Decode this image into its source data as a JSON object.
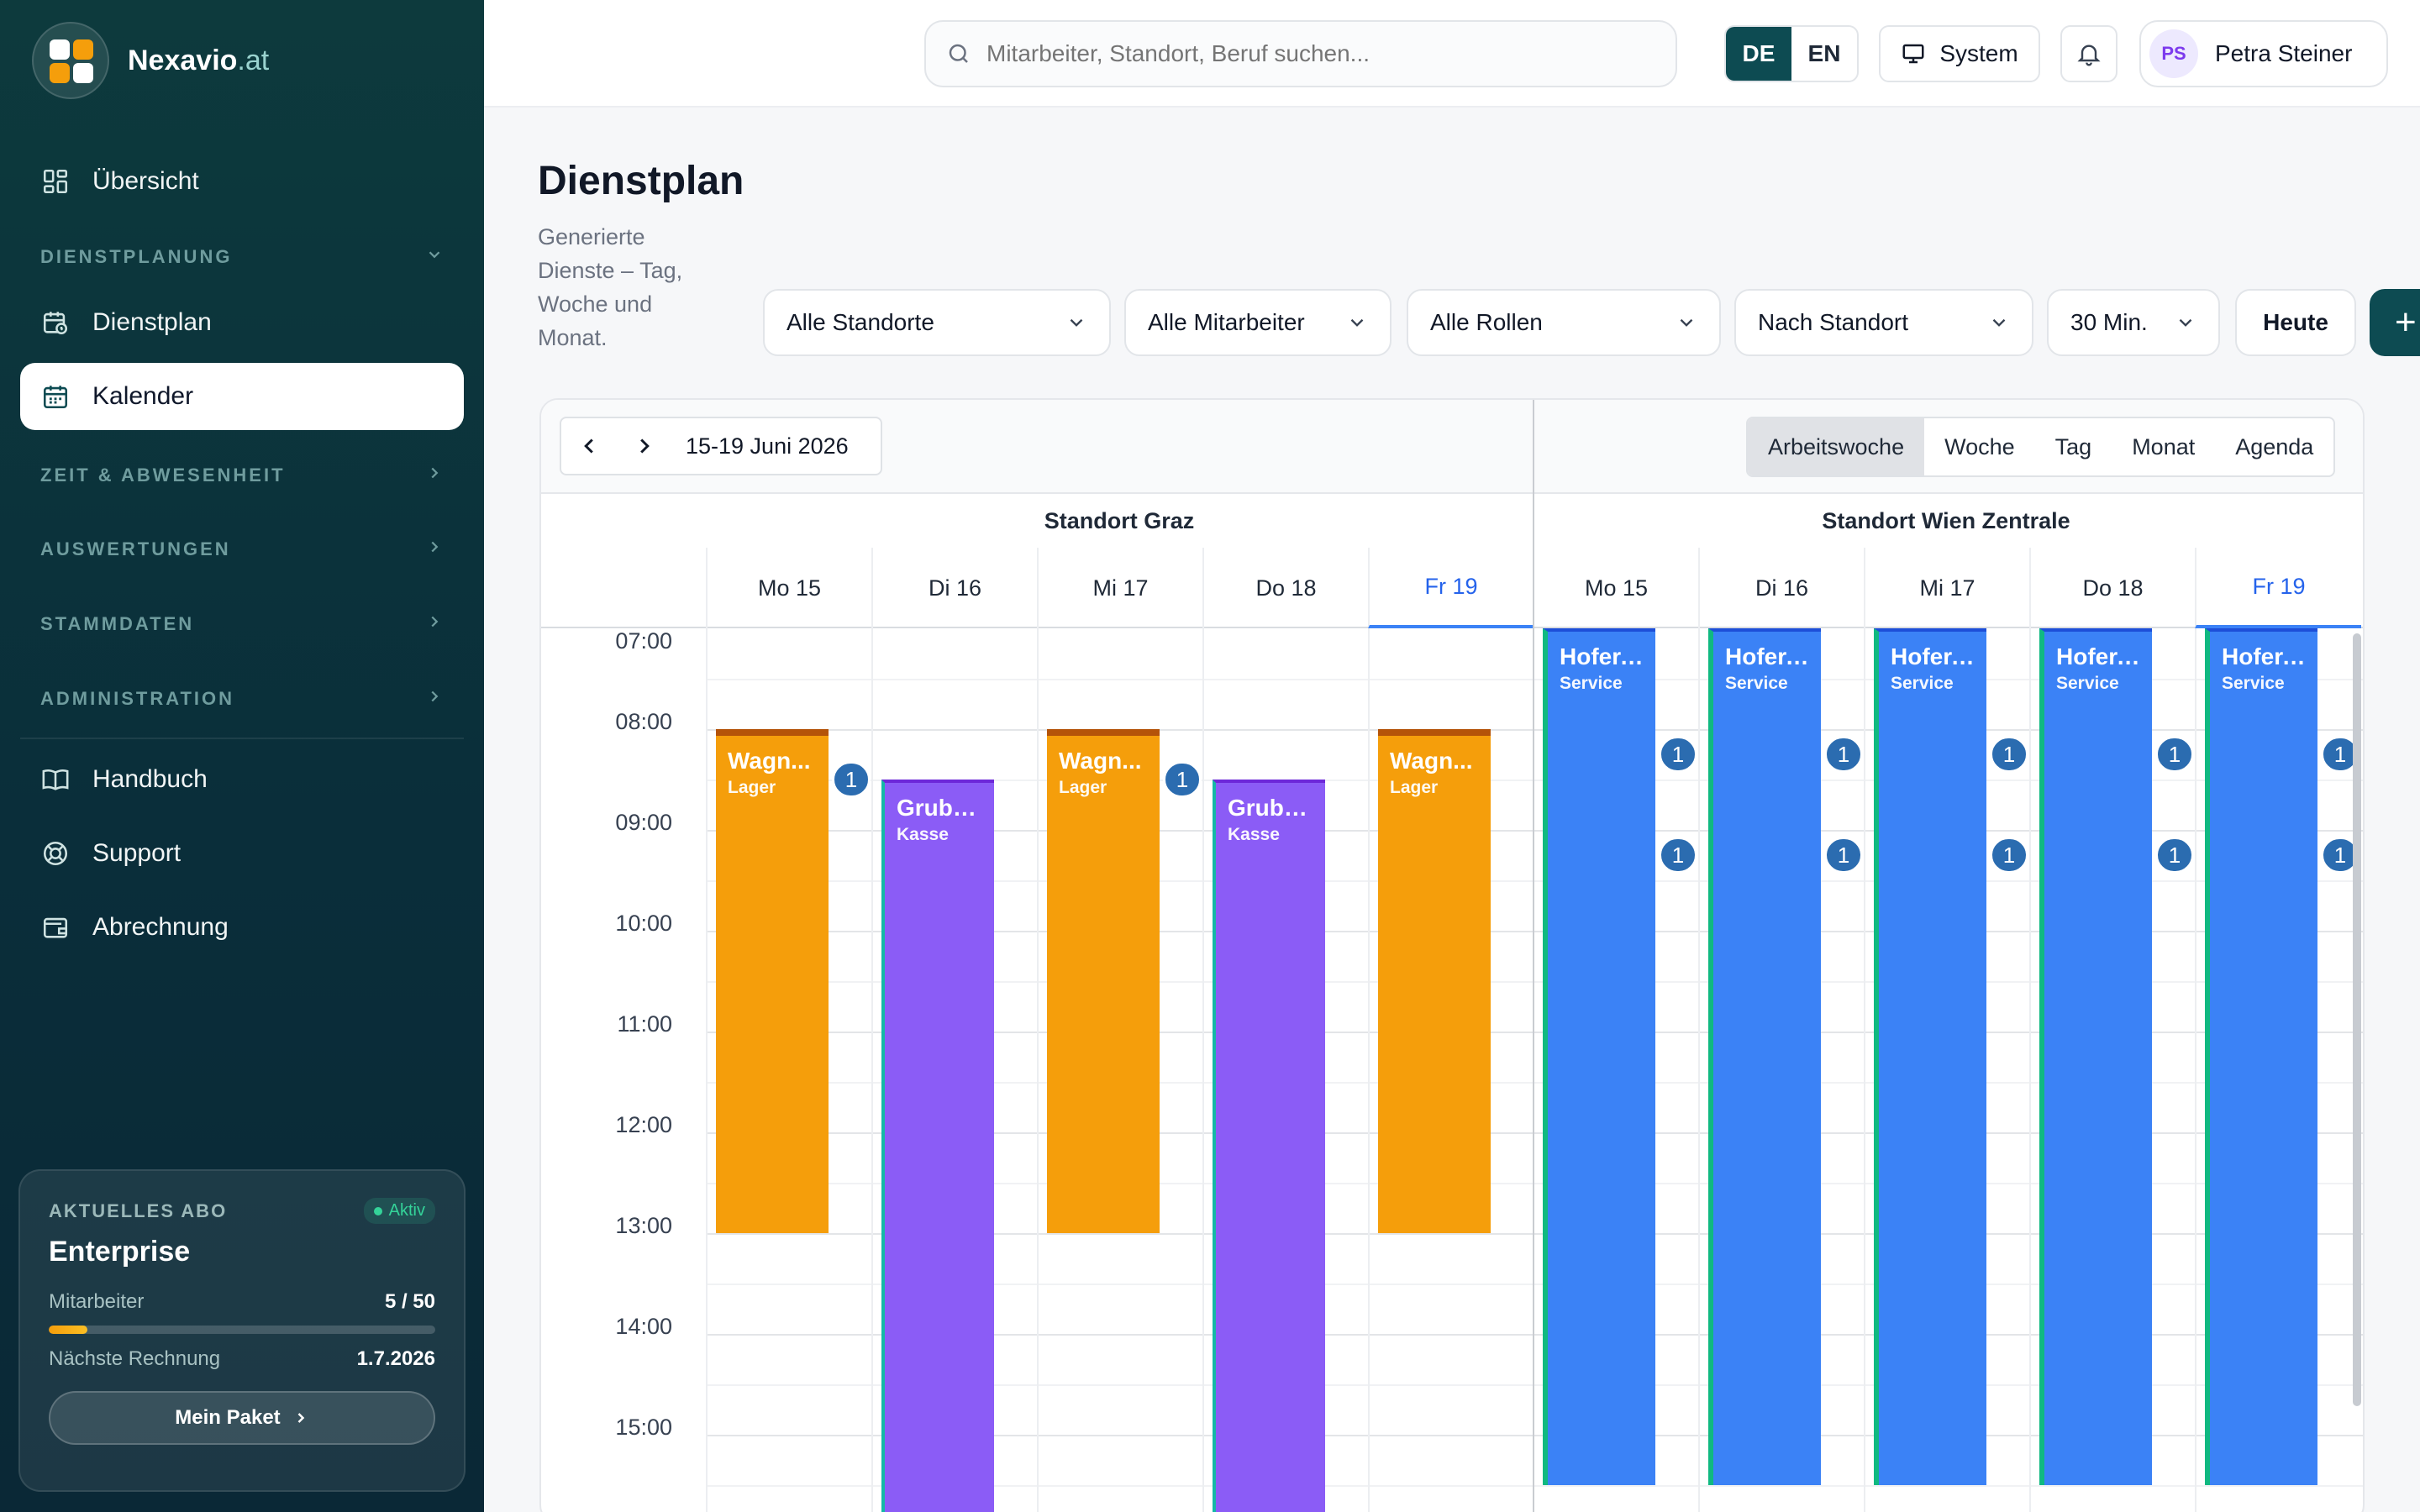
{
  "brand": {
    "name": "Nexavio",
    "suffix": ".at"
  },
  "sidebar": {
    "overview": "Übersicht",
    "section_planning": "DIENSTPLANUNG",
    "dienstplan": "Dienstplan",
    "kalender": "Kalender",
    "section_time": "ZEIT & ABWESENHEIT",
    "section_reports": "AUSWERTUNGEN",
    "section_master": "STAMMDATEN",
    "section_admin": "ADMINISTRATION",
    "handbuch": "Handbuch",
    "support": "Support",
    "abrechnung": "Abrechnung"
  },
  "plan": {
    "label": "AKTUELLES ABO",
    "status": "Aktiv",
    "name": "Enterprise",
    "employees_label": "Mitarbeiter",
    "employees_value": "5 / 50",
    "employees_fraction": 0.1,
    "invoice_label": "Nächste Rechnung",
    "invoice_value": "1.7.2026",
    "button": "Mein Paket"
  },
  "topbar": {
    "search_placeholder": "Mitarbeiter, Standort, Beruf suchen...",
    "lang_de": "DE",
    "lang_en": "EN",
    "system": "System",
    "user_initials": "PS",
    "user_name": "Petra Steiner"
  },
  "page": {
    "title": "Dienstplan",
    "subtitle": "Generierte Dienste – Tag, Woche und Monat."
  },
  "filters": {
    "location": "Alle Standorte",
    "employee": "Alle Mitarbeiter",
    "role": "Alle Rollen",
    "group": "Nach Standort",
    "interval": "30 Min.",
    "today": "Heute"
  },
  "calendar": {
    "range": "15-19 Juni 2026",
    "views": [
      "Arbeitswoche",
      "Woche",
      "Tag",
      "Monat",
      "Agenda"
    ],
    "active_view": "Arbeitswoche",
    "locations": [
      "Standort Graz",
      "Standort Wien Zentrale"
    ],
    "days": [
      "Mo 15",
      "Di 16",
      "Mi 17",
      "Do 18",
      "Fr 19"
    ],
    "today": "Fr 19",
    "times": [
      "07:00",
      "08:00",
      "09:00",
      "10:00",
      "11:00",
      "12:00",
      "13:00",
      "14:00",
      "15:00"
    ],
    "events": {
      "graz_mo": {
        "name": "Wagn...",
        "role": "Lager"
      },
      "graz_di": {
        "name": "Grube...",
        "role": "Kasse"
      },
      "graz_mi": {
        "name": "Wagn...",
        "role": "Lager"
      },
      "graz_do": {
        "name": "Grube...",
        "role": "Kasse"
      },
      "graz_fr": {
        "name": "Wagn...",
        "role": "Lager"
      },
      "wien_mo": {
        "name": "Hofer, ...",
        "role": "Service"
      },
      "wien_di": {
        "name": "Hofer, ...",
        "role": "Service"
      },
      "wien_mi": {
        "name": "Hofer, ...",
        "role": "Service"
      },
      "wien_do": {
        "name": "Hofer, ...",
        "role": "Service"
      },
      "wien_fr": {
        "name": "Hofer, ...",
        "role": "Service"
      }
    },
    "more_count": "1"
  },
  "colors": {
    "lager": "#f59e0b",
    "kasse": "#8b5cf6",
    "service": "#3b82f6",
    "accent": "#0d4b52"
  }
}
